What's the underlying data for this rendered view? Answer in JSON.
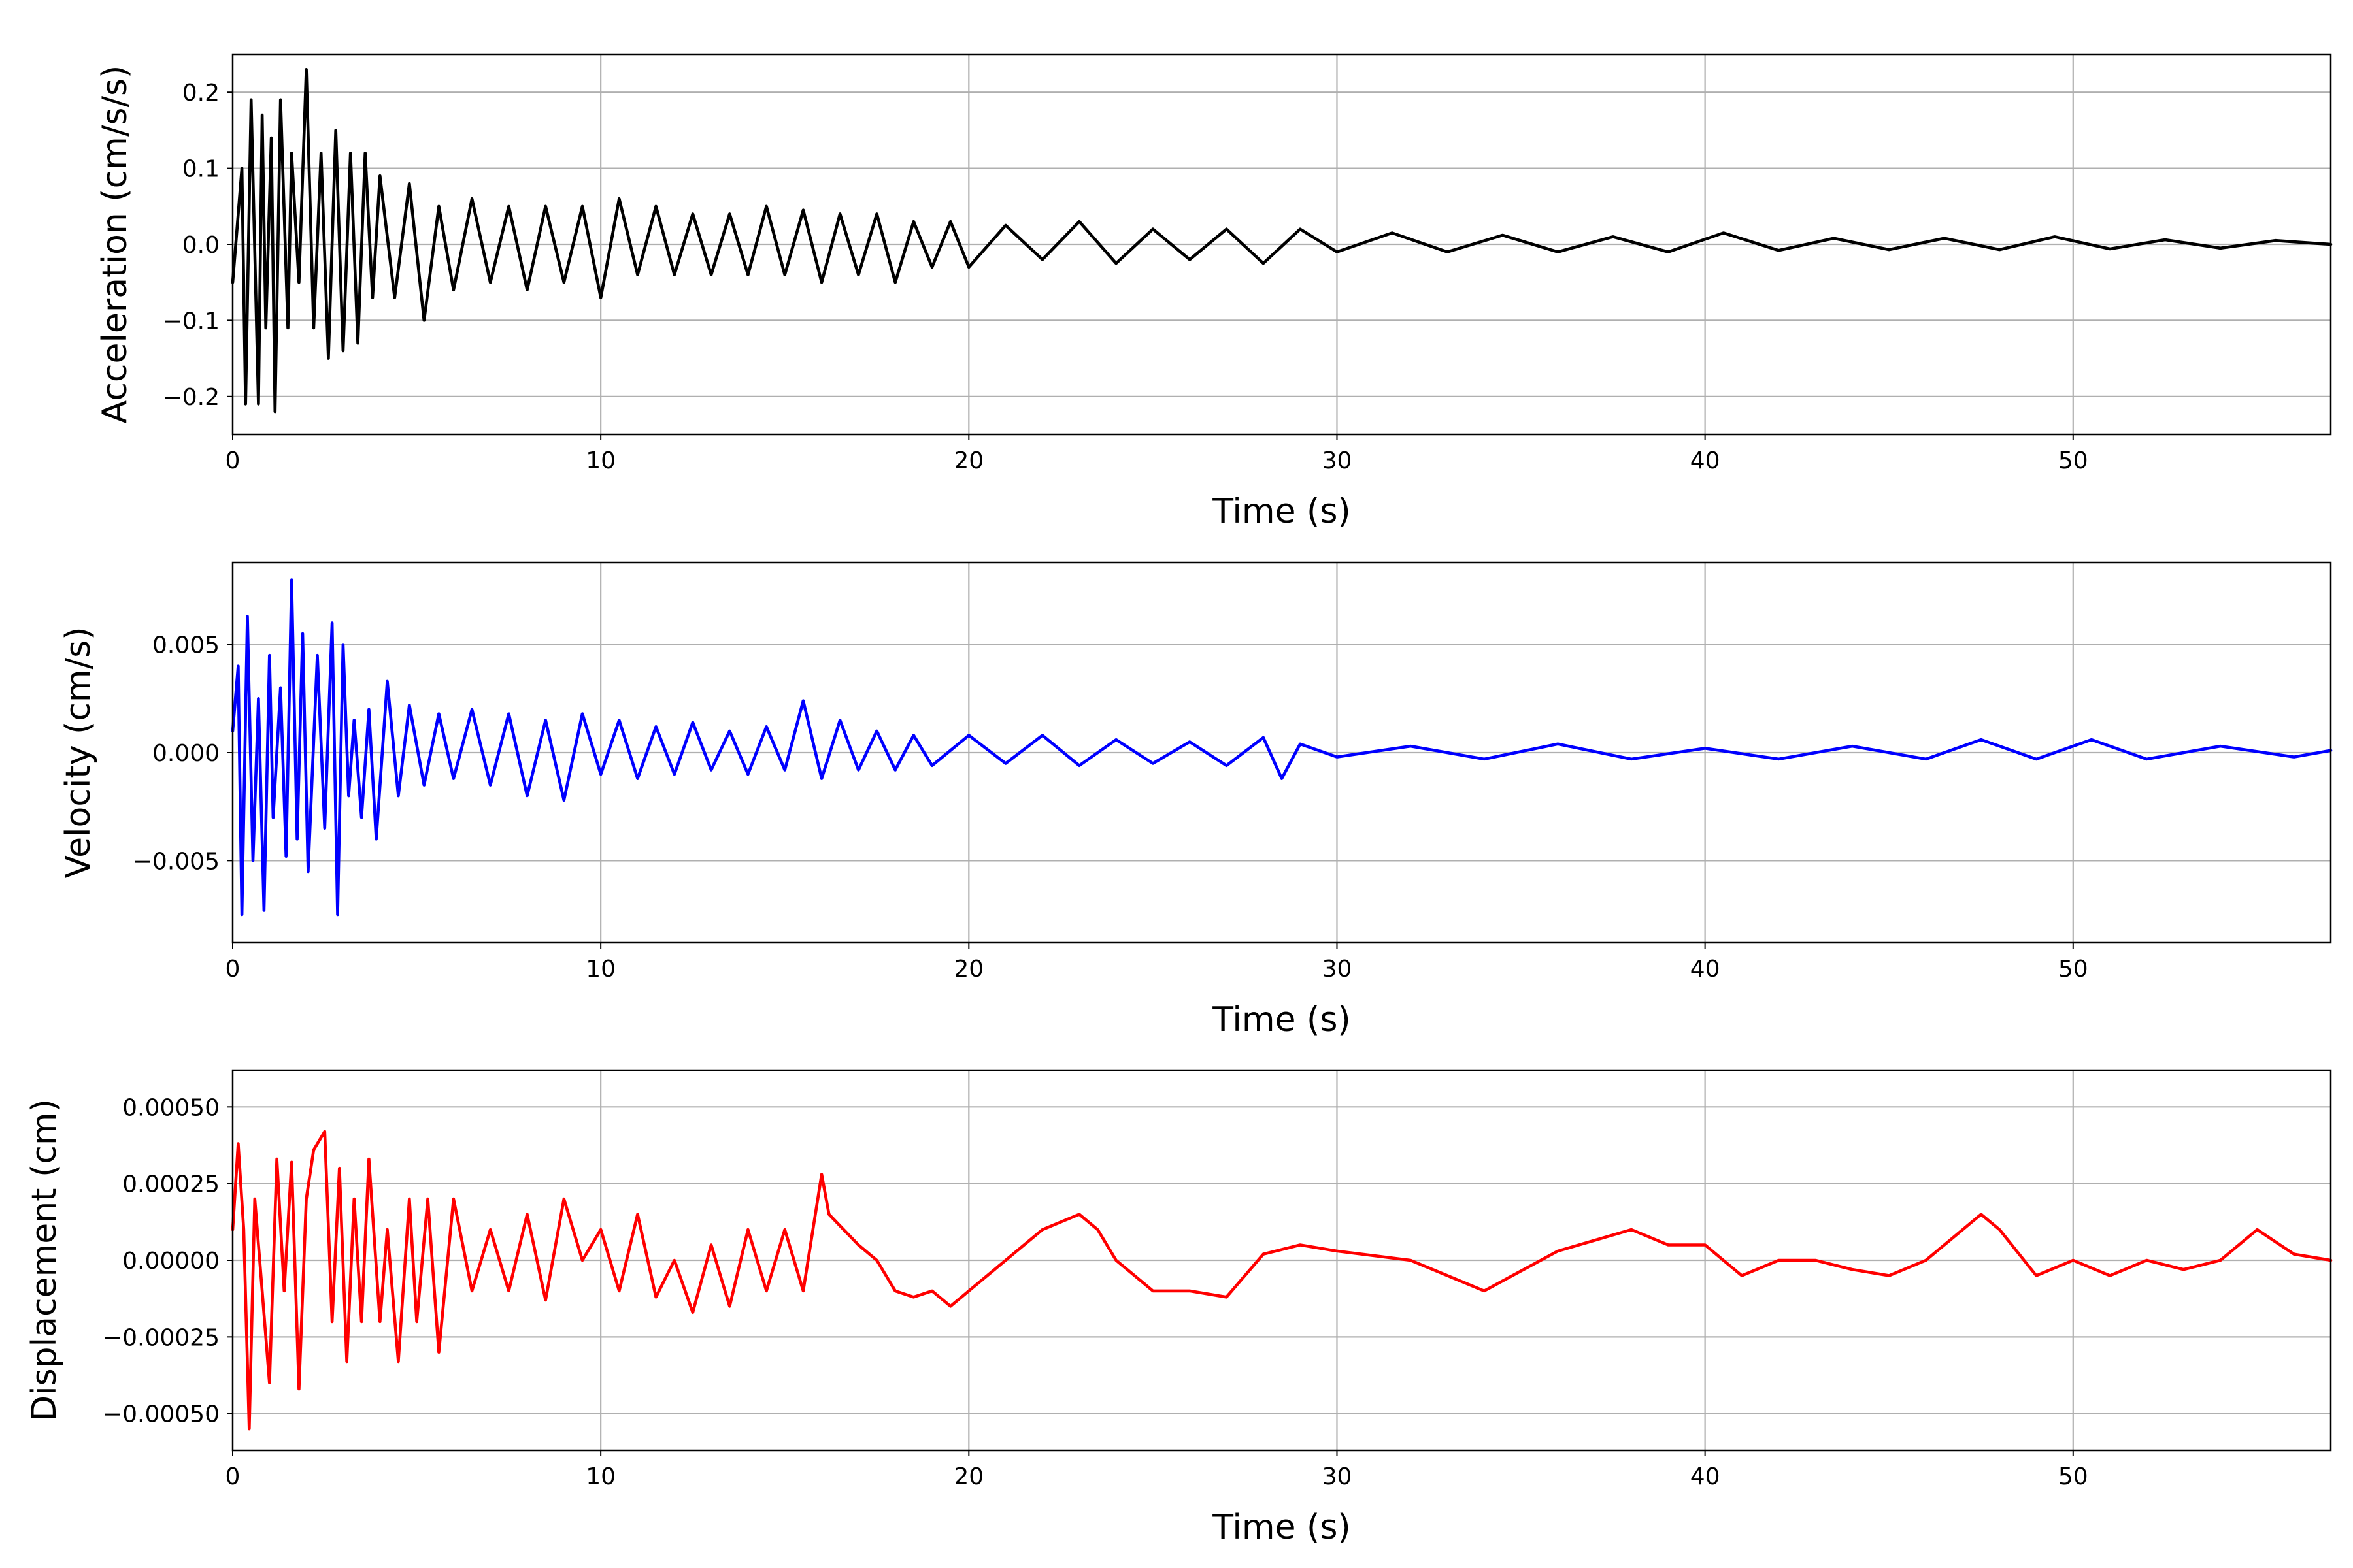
{
  "chart_data": [
    {
      "type": "line",
      "xlabel": "Time (s)",
      "ylabel": "Acceleration (cm/s/s)",
      "xlim": [
        0,
        57
      ],
      "ylim": [
        -0.25,
        0.25
      ],
      "xticks": [
        "0",
        "10",
        "20",
        "30",
        "40",
        "50"
      ],
      "xtick_values": [
        0,
        10,
        20,
        30,
        40,
        50
      ],
      "yticks": [
        "−0.2",
        "−0.1",
        "0.0",
        "0.1",
        "0.2"
      ],
      "ytick_values": [
        -0.2,
        -0.1,
        0.0,
        0.1,
        0.2
      ],
      "grid": true,
      "color": "#000000",
      "series": [
        {
          "x": [
            0,
            0.25,
            0.35,
            0.5,
            0.7,
            0.8,
            0.9,
            1.05,
            1.15,
            1.3,
            1.5,
            1.6,
            1.8,
            2.0,
            2.2,
            2.4,
            2.6,
            2.8,
            3.0,
            3.2,
            3.4,
            3.6,
            3.8,
            4.0,
            4.4,
            4.8,
            5.2,
            5.6,
            6.0,
            6.5,
            7.0,
            7.5,
            8.0,
            8.5,
            9.0,
            9.5,
            10.0,
            10.5,
            11.0,
            11.5,
            12.0,
            12.5,
            13.0,
            13.5,
            14.0,
            14.5,
            15.0,
            15.5,
            16.0,
            16.5,
            17.0,
            17.5,
            18.0,
            18.5,
            19.0,
            19.5,
            20.0,
            21.0,
            22.0,
            23.0,
            24.0,
            25.0,
            26.0,
            27.0,
            28.0,
            29.0,
            30.0,
            31.5,
            33.0,
            34.5,
            36.0,
            37.5,
            39.0,
            40.5,
            42.0,
            43.5,
            45.0,
            46.5,
            48.0,
            49.5,
            51.0,
            52.5,
            54.0,
            55.5,
            57.0
          ],
          "y": [
            -0.05,
            0.1,
            -0.21,
            0.19,
            -0.21,
            0.17,
            -0.11,
            0.14,
            -0.22,
            0.19,
            -0.11,
            0.12,
            -0.05,
            0.23,
            -0.11,
            0.12,
            -0.15,
            0.15,
            -0.14,
            0.12,
            -0.13,
            0.12,
            -0.07,
            0.09,
            -0.07,
            0.08,
            -0.1,
            0.05,
            -0.06,
            0.06,
            -0.05,
            0.05,
            -0.06,
            0.05,
            -0.05,
            0.05,
            -0.07,
            0.06,
            -0.04,
            0.05,
            -0.04,
            0.04,
            -0.04,
            0.04,
            -0.04,
            0.05,
            -0.04,
            0.045,
            -0.05,
            0.04,
            -0.04,
            0.04,
            -0.05,
            0.03,
            -0.03,
            0.03,
            -0.03,
            0.025,
            -0.02,
            0.03,
            -0.025,
            0.02,
            -0.02,
            0.02,
            -0.025,
            0.02,
            -0.01,
            0.015,
            -0.01,
            0.012,
            -0.01,
            0.01,
            -0.01,
            0.015,
            -0.008,
            0.008,
            -0.007,
            0.008,
            -0.007,
            0.01,
            -0.006,
            0.006,
            -0.005,
            0.005,
            0.0
          ]
        }
      ]
    },
    {
      "type": "line",
      "xlabel": "Time (s)",
      "ylabel": "Velocity (cm/s)",
      "xlim": [
        0,
        57
      ],
      "ylim": [
        -0.0088,
        0.0088
      ],
      "xticks": [
        "0",
        "10",
        "20",
        "30",
        "40",
        "50"
      ],
      "xtick_values": [
        0,
        10,
        20,
        30,
        40,
        50
      ],
      "yticks": [
        "−0.005",
        "0.000",
        "0.005"
      ],
      "ytick_values": [
        -0.005,
        0.0,
        0.005
      ],
      "grid": true,
      "color": "#0000ff",
      "series": [
        {
          "x": [
            0,
            0.15,
            0.25,
            0.4,
            0.55,
            0.7,
            0.85,
            1.0,
            1.1,
            1.3,
            1.45,
            1.6,
            1.75,
            1.9,
            2.05,
            2.3,
            2.5,
            2.7,
            2.85,
            3.0,
            3.15,
            3.3,
            3.5,
            3.7,
            3.9,
            4.2,
            4.5,
            4.8,
            5.2,
            5.6,
            6.0,
            6.5,
            7.0,
            7.5,
            8.0,
            8.5,
            9.0,
            9.5,
            10.0,
            10.5,
            11.0,
            11.5,
            12.0,
            12.5,
            13.0,
            13.5,
            14.0,
            14.5,
            15.0,
            15.5,
            16.0,
            16.5,
            17.0,
            17.5,
            18.0,
            18.5,
            19.0,
            20.0,
            21.0,
            22.0,
            23.0,
            24.0,
            25.0,
            26.0,
            27.0,
            28.0,
            28.5,
            29.0,
            30.0,
            32.0,
            34.0,
            36.0,
            38.0,
            40.0,
            42.0,
            44.0,
            46.0,
            47.5,
            49.0,
            50.5,
            52.0,
            54.0,
            56.0,
            57.0
          ],
          "y": [
            0.001,
            0.004,
            -0.0075,
            0.0063,
            -0.005,
            0.0025,
            -0.0073,
            0.0045,
            -0.003,
            0.003,
            -0.0048,
            0.008,
            -0.004,
            0.0055,
            -0.0055,
            0.0045,
            -0.0035,
            0.006,
            -0.0075,
            0.005,
            -0.002,
            0.0015,
            -0.003,
            0.002,
            -0.004,
            0.0033,
            -0.002,
            0.0022,
            -0.0015,
            0.0018,
            -0.0012,
            0.002,
            -0.0015,
            0.0018,
            -0.002,
            0.0015,
            -0.0022,
            0.0018,
            -0.001,
            0.0015,
            -0.0012,
            0.0012,
            -0.001,
            0.0014,
            -0.0008,
            0.001,
            -0.001,
            0.0012,
            -0.0008,
            0.0024,
            -0.0012,
            0.0015,
            -0.0008,
            0.001,
            -0.0008,
            0.0008,
            -0.0006,
            0.0008,
            -0.0005,
            0.0008,
            -0.0006,
            0.0006,
            -0.0005,
            0.0005,
            -0.0006,
            0.0007,
            -0.0012,
            0.0004,
            -0.0002,
            0.0003,
            -0.0003,
            0.0004,
            -0.0003,
            0.0002,
            -0.0003,
            0.0003,
            -0.0003,
            0.0006,
            -0.0003,
            0.0006,
            -0.0003,
            0.0003,
            -0.0002,
            0.0001
          ]
        }
      ]
    },
    {
      "type": "line",
      "xlabel": "Time (s)",
      "ylabel": "Displacement (cm)",
      "xlim": [
        0,
        57
      ],
      "ylim": [
        -0.00062,
        0.00062
      ],
      "xticks": [
        "0",
        "10",
        "20",
        "30",
        "40",
        "50"
      ],
      "xtick_values": [
        0,
        10,
        20,
        30,
        40,
        50
      ],
      "yticks": [
        "−0.00050",
        "−0.00025",
        "0.00000",
        "0.00025",
        "0.00050"
      ],
      "ytick_values": [
        -0.0005,
        -0.00025,
        0.0,
        0.00025,
        0.0005
      ],
      "grid": true,
      "color": "#ff0000",
      "series": [
        {
          "x": [
            0,
            0.15,
            0.3,
            0.45,
            0.6,
            0.8,
            1.0,
            1.2,
            1.4,
            1.6,
            1.8,
            2.0,
            2.2,
            2.5,
            2.7,
            2.9,
            3.1,
            3.3,
            3.5,
            3.7,
            4.0,
            4.2,
            4.5,
            4.8,
            5.0,
            5.3,
            5.6,
            6.0,
            6.5,
            7.0,
            7.5,
            8.0,
            8.5,
            9.0,
            9.5,
            10.0,
            10.5,
            11.0,
            11.5,
            12.0,
            12.5,
            13.0,
            13.5,
            14.0,
            14.5,
            15.0,
            15.5,
            16.0,
            16.2,
            16.6,
            17.0,
            17.5,
            18.0,
            18.5,
            19.0,
            19.5,
            20.0,
            21.0,
            22.0,
            23.0,
            23.5,
            24.0,
            25.0,
            26.0,
            27.0,
            28.0,
            29.0,
            30.0,
            32.0,
            34.0,
            36.0,
            38.0,
            39.0,
            40.0,
            41.0,
            42.0,
            43.0,
            44.0,
            45.0,
            46.0,
            47.0,
            47.5,
            48.0,
            49.0,
            50.0,
            51.0,
            52.0,
            53.0,
            54.0,
            55.0,
            56.0,
            57.0
          ],
          "y": [
            0.0001,
            0.00038,
            0.0001,
            -0.00055,
            0.0002,
            -0.0001,
            -0.0004,
            0.00033,
            -0.0001,
            0.00032,
            -0.00042,
            0.0002,
            0.00036,
            0.00042,
            -0.0002,
            0.0003,
            -0.00033,
            0.0002,
            -0.0002,
            0.00033,
            -0.0002,
            0.0001,
            -0.00033,
            0.0002,
            -0.0002,
            0.0002,
            -0.0003,
            0.0002,
            -0.0001,
            0.0001,
            -0.0001,
            0.00015,
            -0.00013,
            0.0002,
            0.0,
            0.0001,
            -0.0001,
            0.00015,
            -0.00012,
            0.0,
            -0.00017,
            5e-05,
            -0.00015,
            0.0001,
            -0.0001,
            0.0001,
            -0.0001,
            0.00028,
            0.00015,
            0.0001,
            5e-05,
            0.0,
            -0.0001,
            -0.00012,
            -0.0001,
            -0.00015,
            -0.0001,
            0.0,
            0.0001,
            0.00015,
            0.0001,
            0.0,
            -0.0001,
            -0.0001,
            -0.00012,
            2e-05,
            5e-05,
            3e-05,
            0.0,
            -0.0001,
            3e-05,
            0.0001,
            5e-05,
            5e-05,
            -5e-05,
            0.0,
            0.0,
            -3e-05,
            -5e-05,
            0.0,
            0.0001,
            0.00015,
            0.0001,
            -5e-05,
            0.0,
            -5e-05,
            0.0,
            -3e-05,
            0.0,
            0.0001,
            2e-05,
            0.0
          ]
        }
      ]
    }
  ]
}
